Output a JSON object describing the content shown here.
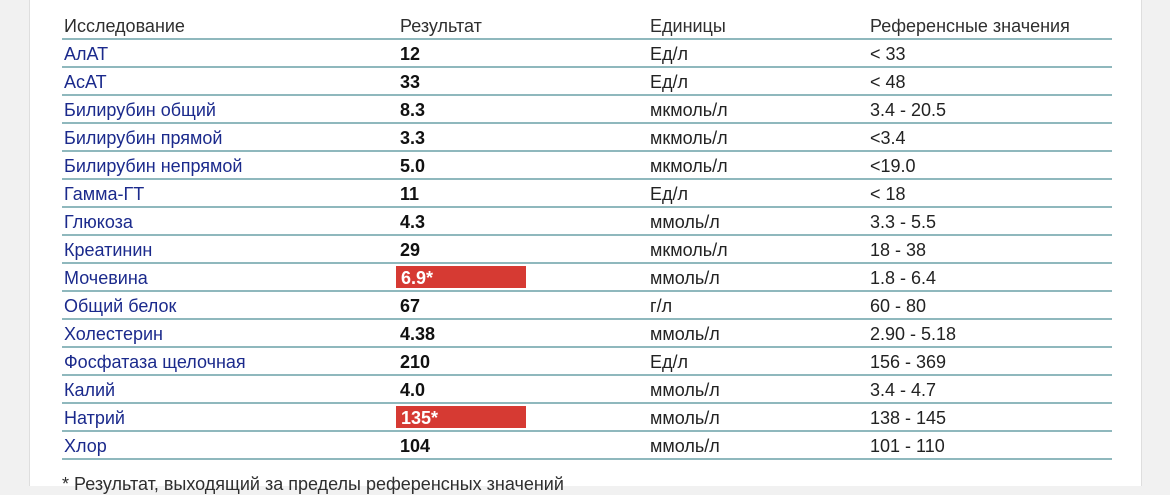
{
  "header": {
    "test": "Исследование",
    "result": "Результат",
    "units": "Единицы",
    "reference": "Референсные значения"
  },
  "rows": [
    {
      "test": "АлАТ",
      "result": "12",
      "units": "Ед/л",
      "reference": "< 33",
      "flagged": false
    },
    {
      "test": "АсАТ",
      "result": "33",
      "units": "Ед/л",
      "reference": "< 48",
      "flagged": false
    },
    {
      "test": "Билирубин общий",
      "result": "8.3",
      "units": "мкмоль/л",
      "reference": "3.4 - 20.5",
      "flagged": false
    },
    {
      "test": "Билирубин прямой",
      "result": "3.3",
      "units": "мкмоль/л",
      "reference": "<3.4",
      "flagged": false
    },
    {
      "test": "Билирубин непрямой",
      "result": "5.0",
      "units": "мкмоль/л",
      "reference": "<19.0",
      "flagged": false
    },
    {
      "test": "Гамма-ГТ",
      "result": "11",
      "units": "Ед/л",
      "reference": "< 18",
      "flagged": false
    },
    {
      "test": "Глюкоза",
      "result": "4.3",
      "units": "ммоль/л",
      "reference": "3.3 - 5.5",
      "flagged": false
    },
    {
      "test": "Креатинин",
      "result": "29",
      "units": "мкмоль/л",
      "reference": "18 - 38",
      "flagged": false
    },
    {
      "test": "Мочевина",
      "result": "6.9*",
      "units": "ммоль/л",
      "reference": "1.8 - 6.4",
      "flagged": true
    },
    {
      "test": "Общий белок",
      "result": "67",
      "units": "г/л",
      "reference": "60 - 80",
      "flagged": false
    },
    {
      "test": "Холестерин",
      "result": "4.38",
      "units": "ммоль/л",
      "reference": "2.90 - 5.18",
      "flagged": false
    },
    {
      "test": "Фосфатаза щелочная",
      "result": "210",
      "units": "Ед/л",
      "reference": "156 - 369",
      "flagged": false
    },
    {
      "test": "Калий",
      "result": "4.0",
      "units": "ммоль/л",
      "reference": "3.4 - 4.7",
      "flagged": false
    },
    {
      "test": "Натрий",
      "result": "135*",
      "units": "ммоль/л",
      "reference": "138 - 145",
      "flagged": true
    },
    {
      "test": "Хлор",
      "result": "104",
      "units": "ммоль/л",
      "reference": "101 - 110",
      "flagged": false
    }
  ],
  "footnote": "* Результат, выходящий за пределы референсных значений",
  "colors": {
    "flag_background": "#d63a33",
    "row_divider": "#8fb8bd",
    "test_name_text": "#1b2a8c"
  }
}
